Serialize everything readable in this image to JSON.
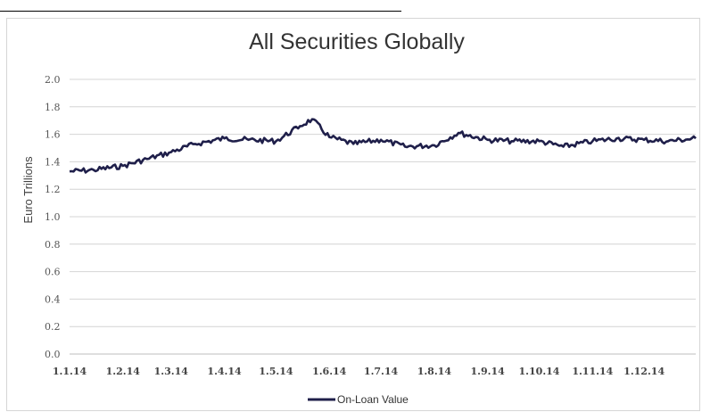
{
  "chart_data": {
    "type": "line",
    "title": "All Securities Globally",
    "ylabel": "Euro Trillions",
    "xlabel": "",
    "ylim": [
      0.0,
      2.0
    ],
    "yticks": [
      "0.0",
      "0.2",
      "0.4",
      "0.6",
      "0.8",
      "1.0",
      "1.2",
      "1.4",
      "1.6",
      "1.8",
      "2.0"
    ],
    "xticks": [
      "1.1.14",
      "1.2.14",
      "1.3.14",
      "1.4.14",
      "1.5.14",
      "1.6.14",
      "1.7.14",
      "1.8.14",
      "1.9.14",
      "1.10.14",
      "1.11.14",
      "1.12.14"
    ],
    "grid": "horizontal",
    "legend_position": "bottom",
    "series_color": "#1f1f4a",
    "series": [
      {
        "name": "On-Loan Value",
        "x": [
          "1.1.14",
          "15.1.14",
          "1.2.14",
          "15.2.14",
          "1.3.14",
          "15.3.14",
          "1.4.14",
          "15.4.14",
          "1.5.14",
          "15.5.14",
          "22.5.14",
          "1.6.14",
          "15.6.14",
          "1.7.14",
          "15.7.14",
          "1.8.14",
          "15.8.14",
          "1.9.14",
          "15.9.14",
          "1.10.14",
          "15.10.14",
          "1.11.14",
          "15.11.14",
          "1.12.14",
          "15.12.14",
          "31.12.14"
        ],
        "values": [
          1.33,
          1.34,
          1.37,
          1.42,
          1.47,
          1.53,
          1.57,
          1.56,
          1.55,
          1.66,
          1.71,
          1.58,
          1.53,
          1.56,
          1.51,
          1.52,
          1.61,
          1.56,
          1.55,
          1.55,
          1.51,
          1.55,
          1.57,
          1.56,
          1.55,
          1.57
        ]
      }
    ]
  }
}
